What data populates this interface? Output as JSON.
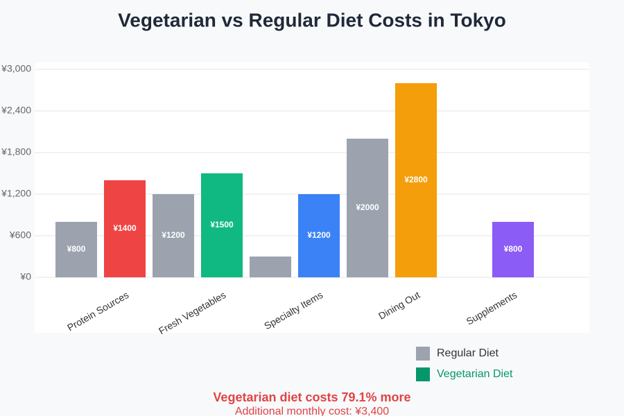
{
  "chart_data": {
    "type": "bar",
    "title": "Vegetarian vs Regular Diet Costs in Tokyo",
    "categories": [
      "Protein Sources",
      "Fresh Vegetables",
      "Specialty Items",
      "Dining Out",
      "Supplements"
    ],
    "series": [
      {
        "name": "Regular Diet",
        "color": "#9ca3af",
        "values": [
          800,
          1200,
          300,
          2000,
          0
        ],
        "value_labels": [
          "¥800",
          "¥1200",
          null,
          "¥2000",
          null
        ]
      },
      {
        "name": "Vegetarian Diet",
        "color": "#059669",
        "colors": [
          "#ef4444",
          "#10b981",
          "#3b82f6",
          "#f59e0b",
          "#8b5cf6"
        ],
        "values": [
          1400,
          1500,
          1200,
          2800,
          800
        ],
        "value_labels": [
          "¥1400",
          "¥1500",
          "¥1200",
          "¥2800",
          "¥800"
        ]
      }
    ],
    "ylim": [
      0,
      3000
    ],
    "yticks": [
      {
        "value": 0,
        "label": "¥0"
      },
      {
        "value": 600,
        "label": "¥600"
      },
      {
        "value": 1200,
        "label": "¥1,200"
      },
      {
        "value": 1800,
        "label": "¥1,800"
      },
      {
        "value": 2400,
        "label": "¥2,400"
      },
      {
        "value": 3000,
        "label": "¥3,000"
      }
    ],
    "grid": true,
    "summary": "Vegetarian diet costs 79.1% more",
    "summary_detail": "Additional monthly cost: ¥3,400"
  }
}
